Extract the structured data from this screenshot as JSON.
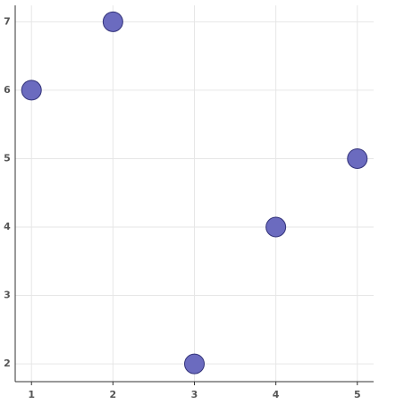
{
  "chart_data": {
    "type": "scatter",
    "x": [
      1,
      2,
      3,
      4,
      5
    ],
    "values": [
      6,
      7,
      2,
      4,
      5
    ],
    "color": "#6b6bbf",
    "xlim": [
      0.8,
      5.2
    ],
    "ylim": [
      1.74,
      7.24
    ],
    "xticks": [
      1,
      2,
      3,
      4,
      5
    ],
    "yticks": [
      2,
      3,
      4,
      5,
      6,
      7
    ],
    "grid": true
  }
}
